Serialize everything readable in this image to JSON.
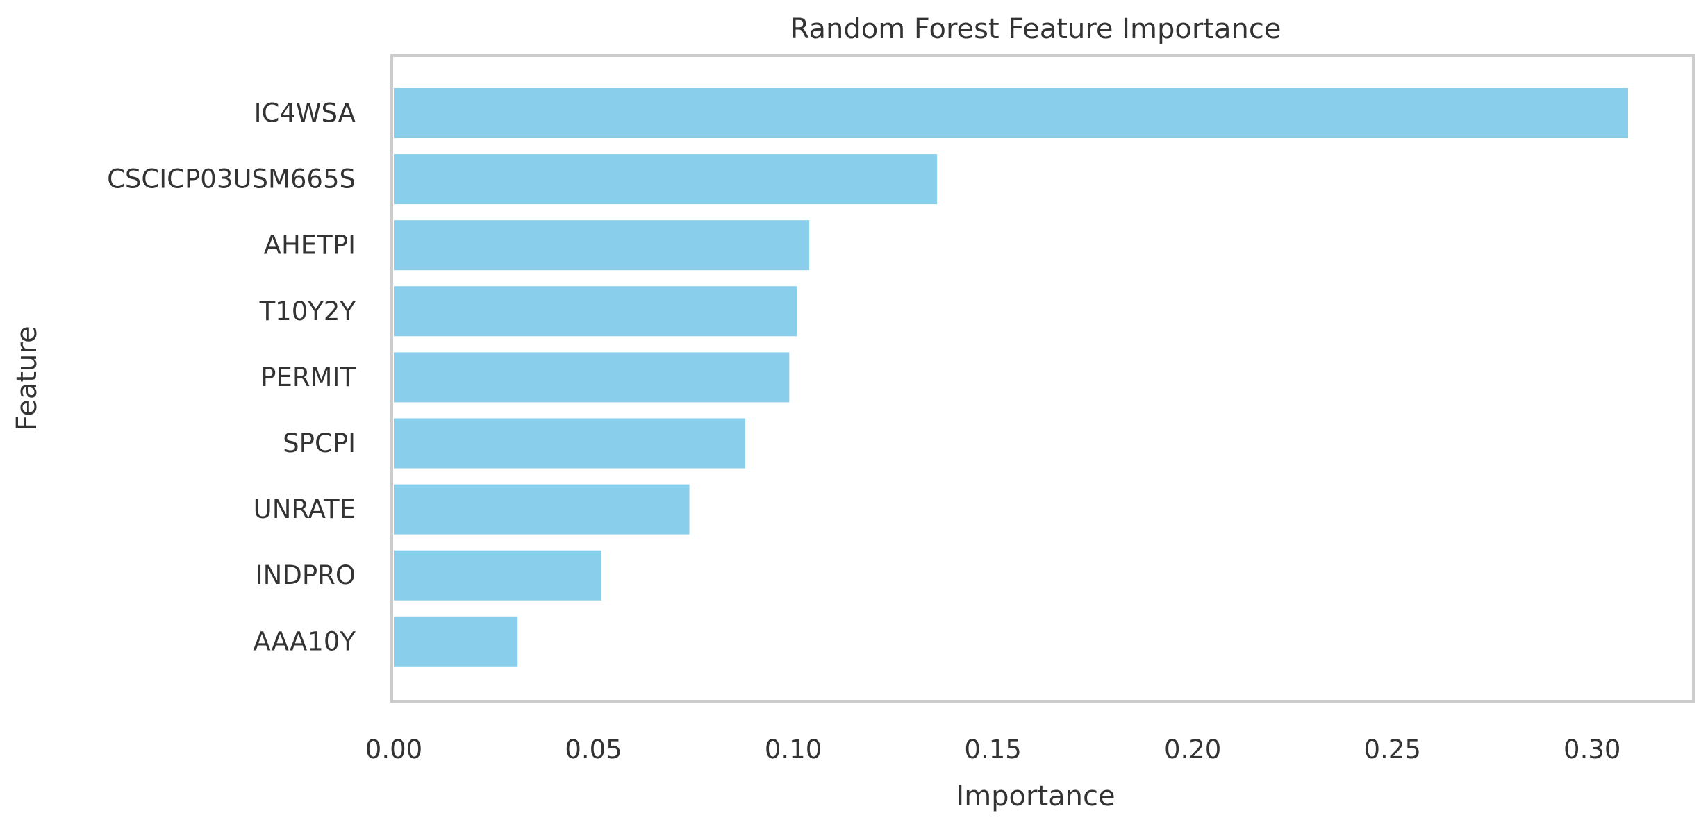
{
  "chart_data": {
    "type": "bar",
    "orientation": "horizontal",
    "title": "Random Forest Feature Importance",
    "xlabel": "Importance",
    "ylabel": "Feature",
    "categories": [
      "IC4WSA",
      "CSCICP03USM665S",
      "AHETPI",
      "T10Y2Y",
      "PERMIT",
      "SPCPI",
      "UNRATE",
      "INDPRO",
      "AAA10Y"
    ],
    "values": [
      0.309,
      0.136,
      0.104,
      0.101,
      0.099,
      0.088,
      0.074,
      0.052,
      0.031
    ],
    "xlim": [
      0.0,
      0.325
    ],
    "xticks": [
      0.0,
      0.05,
      0.1,
      0.15,
      0.2,
      0.25,
      0.3
    ],
    "xtick_labels": [
      "0.00",
      "0.05",
      "0.10",
      "0.15",
      "0.20",
      "0.25",
      "0.30"
    ],
    "grid": false,
    "bar_color": "#89CEEA",
    "frame_color": "#CCCCCC"
  }
}
